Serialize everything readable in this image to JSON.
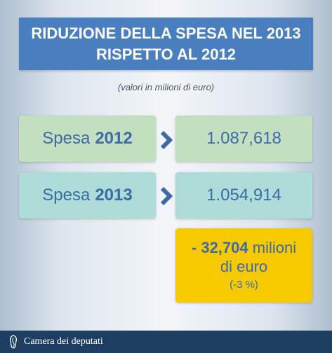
{
  "header": {
    "title_line1": "RIDUZIONE DELLA SPESA NEL 2013",
    "title_line2": "RISPETTO AL 2012",
    "subtitle": "(valori in milioni di euro)"
  },
  "rows": [
    {
      "label": "Spesa",
      "year": "2012",
      "value": "1.087,618",
      "color": "#c2dfc0"
    },
    {
      "label": "Spesa",
      "year": "2013",
      "value": "1.054,914",
      "color": "#aedcd8"
    }
  ],
  "result": {
    "amount": "- 32,704",
    "unit1": "milioni",
    "unit2": "di euro",
    "percent": "(-3 %)",
    "color": "#f7ca00"
  },
  "footer": {
    "logo_icon": "camera-dei-deputati-logo-icon",
    "text": "Camera dei deputati"
  },
  "colors": {
    "title_bg": "#4a7fbf",
    "text_blue": "#3e6aa8",
    "footer_bg": "#1e3d62"
  }
}
